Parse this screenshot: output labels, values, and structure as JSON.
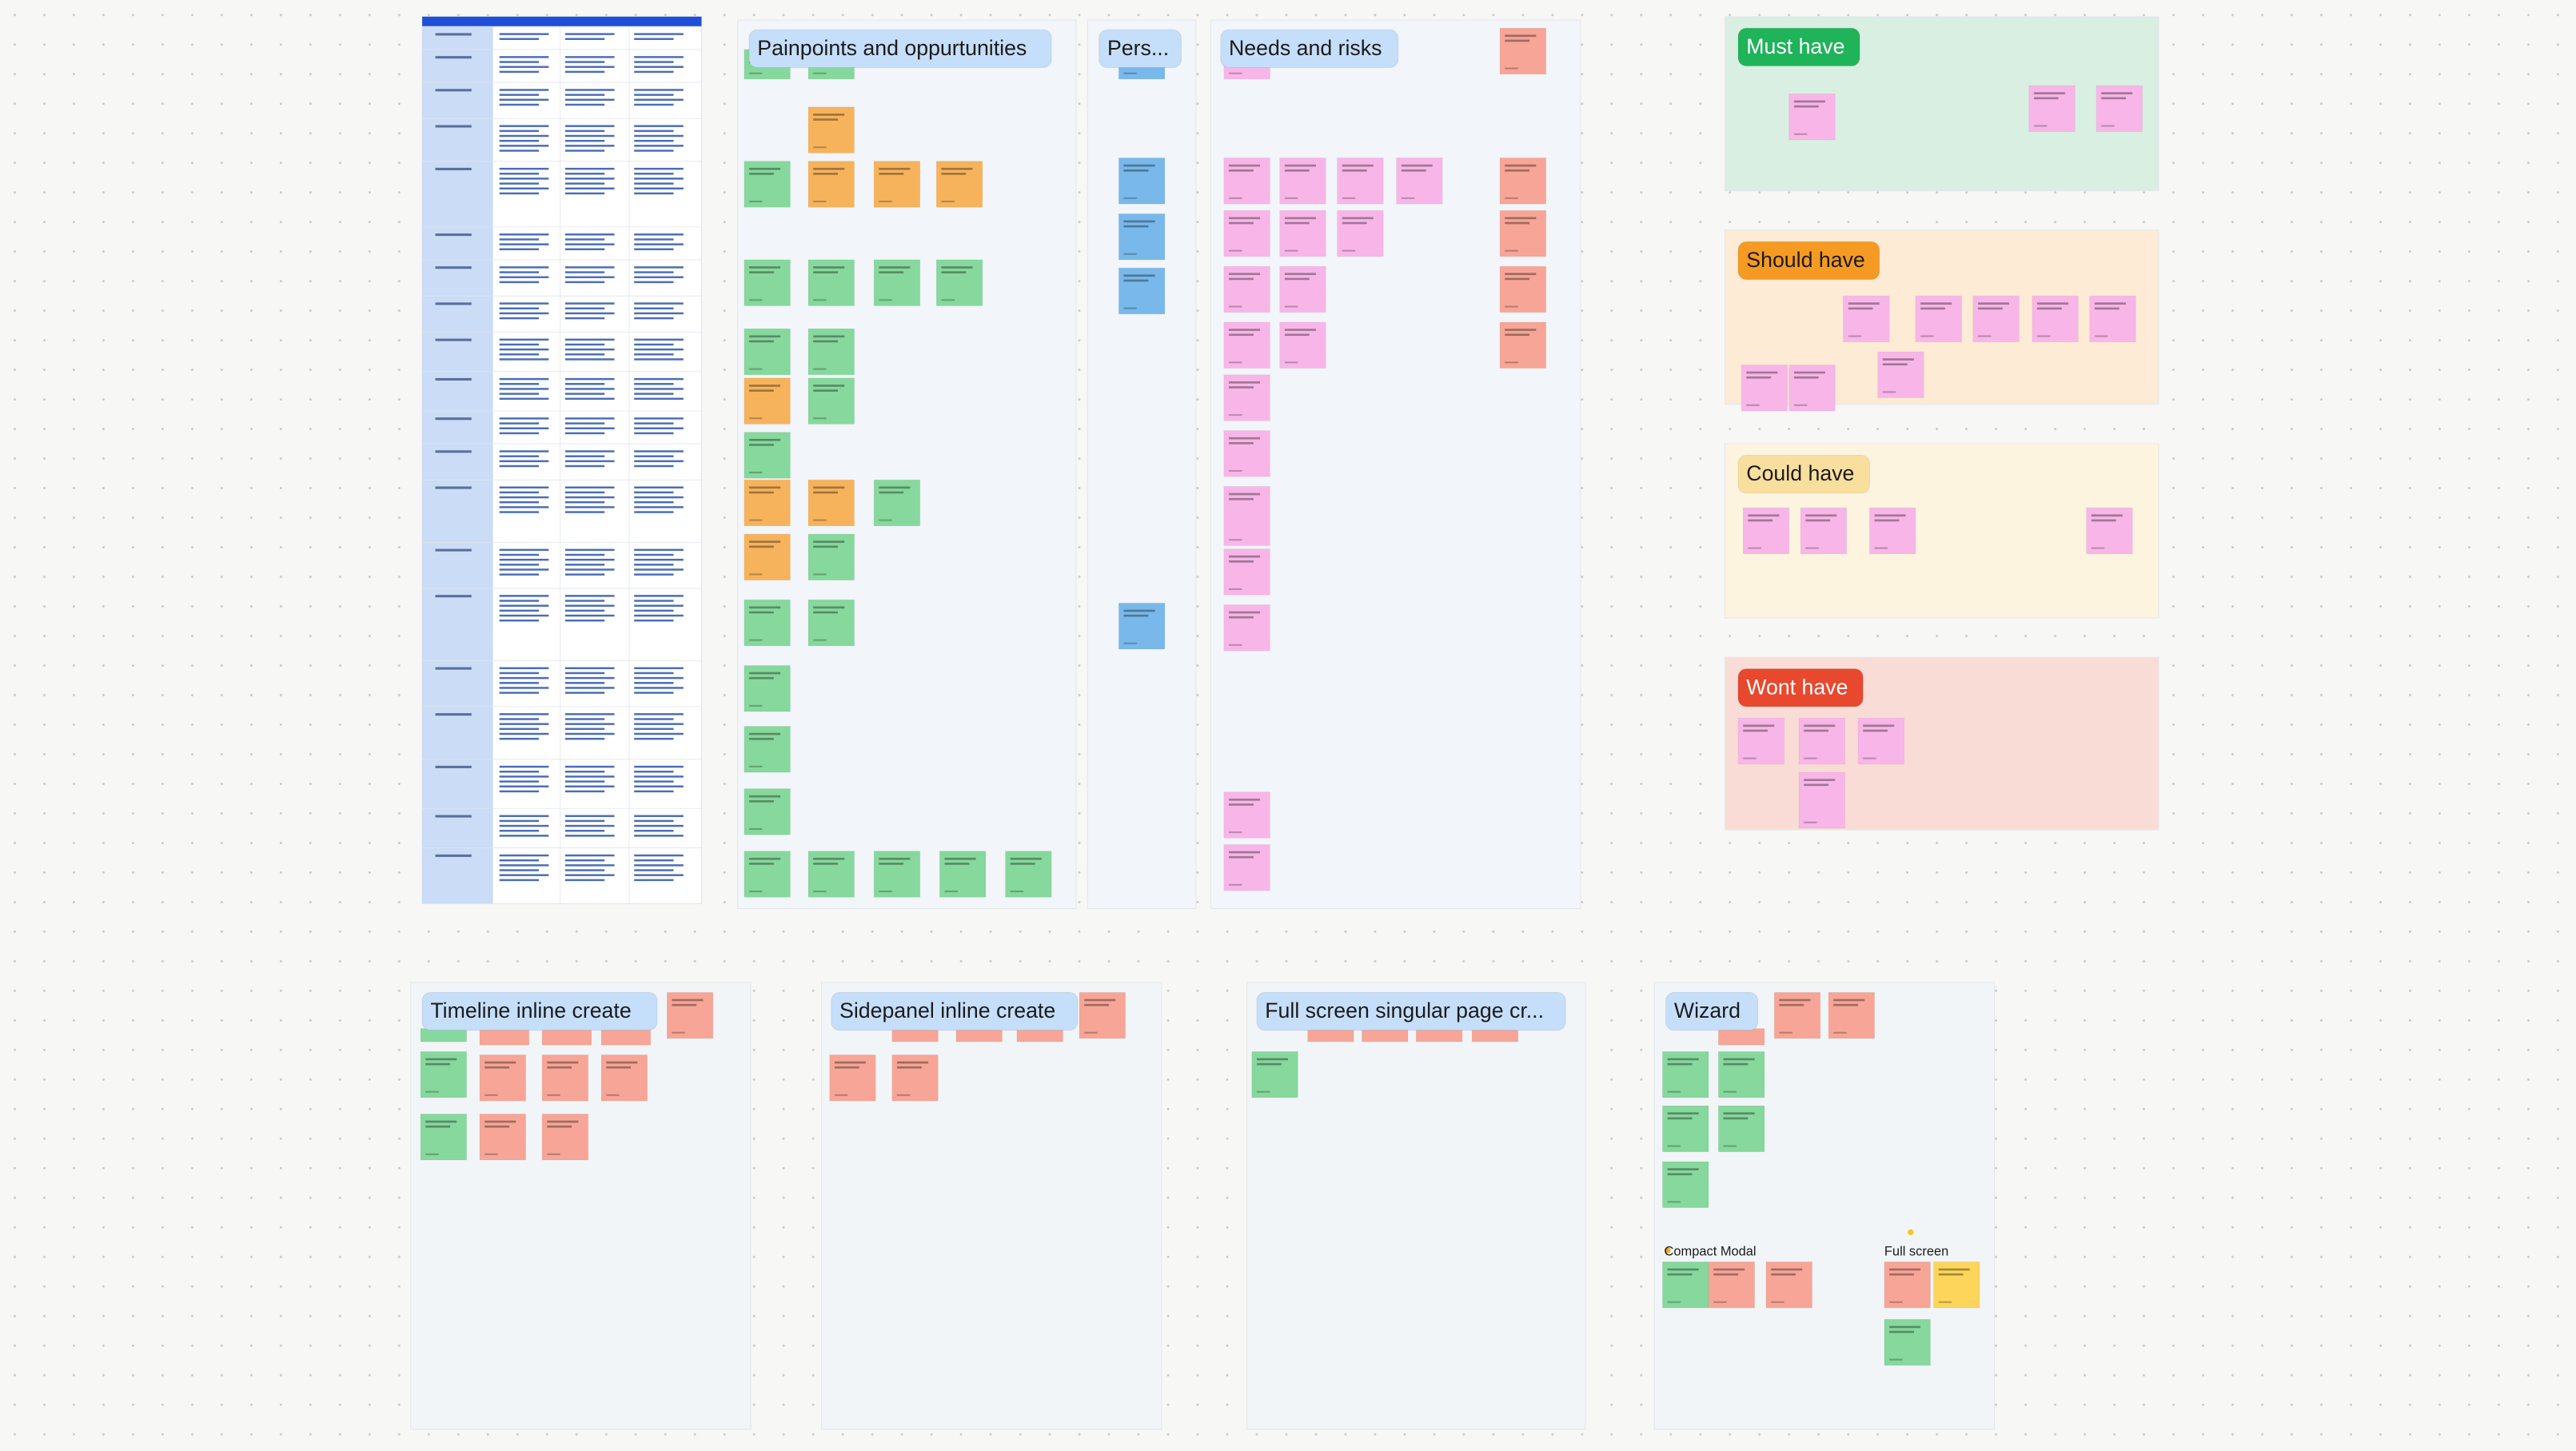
{
  "frames": [
    {
      "title": "Painpoints and oppurtunities"
    },
    {
      "title": "Pers..."
    },
    {
      "title": "Needs and risks"
    },
    {
      "title": "Must have"
    },
    {
      "title": "Should have"
    },
    {
      "title": "Could have"
    },
    {
      "title": "Wont have"
    },
    {
      "title": "Timeline inline create"
    },
    {
      "title": "Sidepanel inline create"
    },
    {
      "title": "Full screen singular page cr..."
    },
    {
      "title": "Wizard"
    }
  ],
  "labels": [
    "Compact Modal",
    "Full screen"
  ]
}
